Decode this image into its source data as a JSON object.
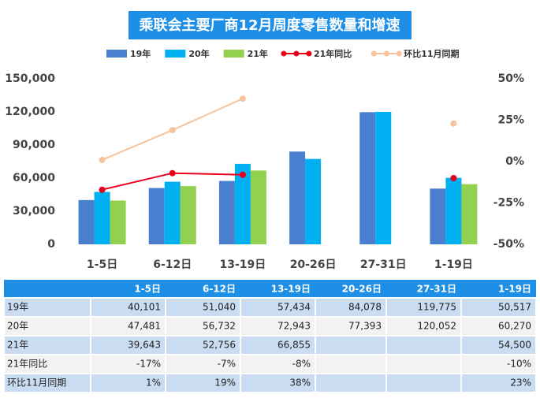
{
  "chart_data": {
    "type": "bar",
    "title": "乘联会主要厂商12月周度零售数量和增速",
    "categories": [
      "1-5日",
      "6-12日",
      "13-19日",
      "20-26日",
      "27-31日",
      "1-19日"
    ],
    "series": [
      {
        "name": "19年",
        "color": "#4a7fcf",
        "values": [
          40101,
          51040,
          57434,
          84078,
          119775,
          50517
        ],
        "value_labels": [
          "40,101",
          "51,040",
          "57,434",
          "84,078",
          "119,775",
          "50,517"
        ]
      },
      {
        "name": "20年",
        "color": "#00b0f0",
        "values": [
          47481,
          56732,
          72943,
          77393,
          120052,
          60270
        ],
        "value_labels": [
          "47,481",
          "56,732",
          "72,943",
          "77,393",
          "120,052",
          "60,270"
        ]
      },
      {
        "name": "21年",
        "color": "#92d050",
        "values": [
          39643,
          52756,
          66855,
          null,
          null,
          54500
        ],
        "value_labels": [
          "39,643",
          "52,756",
          "66,855",
          null,
          null,
          "54,500"
        ]
      },
      {
        "name": "21年同比",
        "type": "line",
        "axis": "y2",
        "color": "#e8001a",
        "values": [
          -17,
          -7,
          -8,
          null,
          null,
          -10
        ],
        "value_labels": [
          "-17%",
          "-7%",
          "-8%",
          null,
          null,
          "-10%"
        ]
      },
      {
        "name": "环比11月同期",
        "type": "line",
        "axis": "y2",
        "color": "#f8c39b",
        "values": [
          1,
          19,
          38,
          null,
          null,
          23
        ],
        "value_labels": [
          "1%",
          "19%",
          "38%",
          null,
          null,
          "23%"
        ]
      }
    ],
    "ylim": [
      0,
      150000
    ],
    "yticks": [
      0,
      {
        "value": 30000,
        "label": "30,000"
      },
      {
        "value": 60000,
        "label": "60,000"
      },
      {
        "value": 90000,
        "label": "90,000"
      },
      {
        "value": 120000,
        "label": "120,000"
      },
      {
        "value": 150000,
        "label": "150,000"
      }
    ],
    "y2lim": [
      -50,
      50
    ],
    "y2ticks": [
      {
        "value": -50,
        "label": "-50%"
      },
      {
        "value": -25,
        "label": "-25%"
      },
      {
        "value": 0,
        "label": "0%"
      },
      {
        "value": 25,
        "label": "25%"
      },
      {
        "value": 50,
        "label": "50%"
      }
    ],
    "grid": false,
    "legend": "top",
    "data_table": true
  }
}
